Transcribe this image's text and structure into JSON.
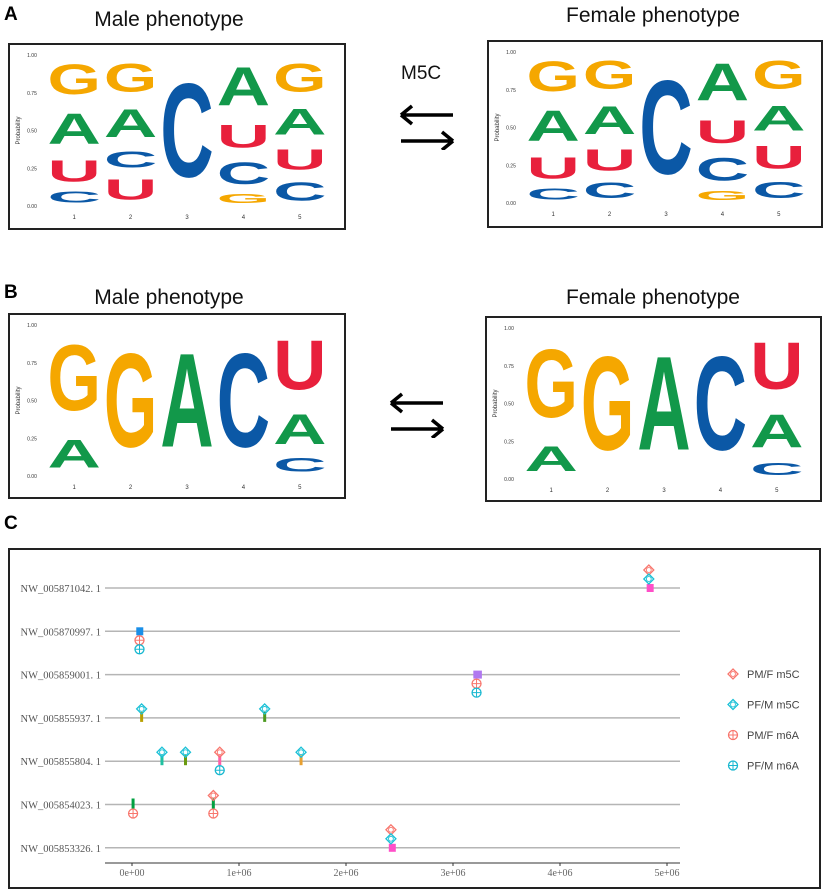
{
  "panels": {
    "a": {
      "label": "A",
      "modification": "M5C",
      "male_title": "Male phenotype",
      "female_title": "Female phenotype"
    },
    "b": {
      "label": "B",
      "male_title": "Male phenotype",
      "female_title": "Female phenotype"
    },
    "c": {
      "label": "C"
    }
  },
  "logo_colors": {
    "G": "#f5a700",
    "A": "#12984a",
    "U": "#e8203c",
    "C": "#0b58a6"
  },
  "chart_data": [
    {
      "type": "sequence-logo",
      "panel": "A",
      "title": "Male phenotype",
      "ylabel": "Probability",
      "yticks": [
        "0.00",
        "0.25",
        "0.50",
        "0.75",
        "1.00"
      ],
      "ylim": [
        0,
        1
      ],
      "positions": [
        "1",
        "2",
        "3",
        "4",
        "5"
      ],
      "stacks": [
        [
          {
            "base": "C",
            "p": 0.12
          },
          {
            "base": "U",
            "p": 0.23
          },
          {
            "base": "A",
            "p": 0.33
          },
          {
            "base": "G",
            "p": 0.32
          }
        ],
        [
          {
            "base": "U",
            "p": 0.22
          },
          {
            "base": "C",
            "p": 0.18
          },
          {
            "base": "A",
            "p": 0.3
          },
          {
            "base": "G",
            "p": 0.3
          }
        ],
        [
          {
            "base": "C",
            "p": 1.0
          }
        ],
        [
          {
            "base": "G",
            "p": 0.1
          },
          {
            "base": "C",
            "p": 0.24
          },
          {
            "base": "U",
            "p": 0.25
          },
          {
            "base": "A",
            "p": 0.41
          }
        ],
        [
          {
            "base": "C",
            "p": 0.2
          },
          {
            "base": "U",
            "p": 0.22
          },
          {
            "base": "A",
            "p": 0.28
          },
          {
            "base": "G",
            "p": 0.3
          }
        ]
      ]
    },
    {
      "type": "sequence-logo",
      "panel": "A",
      "title": "Female phenotype",
      "ylabel": "Probability",
      "yticks": [
        "0.00",
        "0.25",
        "0.50",
        "0.75",
        "1.00"
      ],
      "ylim": [
        0,
        1
      ],
      "positions": [
        "1",
        "2",
        "3",
        "4",
        "5"
      ],
      "stacks": [
        [
          {
            "base": "C",
            "p": 0.12
          },
          {
            "base": "U",
            "p": 0.23
          },
          {
            "base": "A",
            "p": 0.33
          },
          {
            "base": "G",
            "p": 0.32
          }
        ],
        [
          {
            "base": "C",
            "p": 0.17
          },
          {
            "base": "U",
            "p": 0.23
          },
          {
            "base": "A",
            "p": 0.3
          },
          {
            "base": "G",
            "p": 0.3
          }
        ],
        [
          {
            "base": "C",
            "p": 1.0
          }
        ],
        [
          {
            "base": "G",
            "p": 0.1
          },
          {
            "base": "C",
            "p": 0.25
          },
          {
            "base": "U",
            "p": 0.25
          },
          {
            "base": "A",
            "p": 0.4
          }
        ],
        [
          {
            "base": "C",
            "p": 0.18
          },
          {
            "base": "U",
            "p": 0.25
          },
          {
            "base": "A",
            "p": 0.27
          },
          {
            "base": "G",
            "p": 0.3
          }
        ]
      ]
    },
    {
      "type": "sequence-logo",
      "panel": "B",
      "title": "Male phenotype",
      "ylabel": "Probability",
      "yticks": [
        "0.00",
        "0.25",
        "0.50",
        "0.75",
        "1.00"
      ],
      "ylim": [
        0,
        1
      ],
      "positions": [
        "1",
        "2",
        "3",
        "4",
        "5"
      ],
      "stacks": [
        [
          {
            "base": "A",
            "p": 0.3
          },
          {
            "base": "G",
            "p": 0.7
          }
        ],
        [
          {
            "base": "G",
            "p": 1.0
          }
        ],
        [
          {
            "base": "A",
            "p": 1.0
          }
        ],
        [
          {
            "base": "C",
            "p": 1.0
          }
        ],
        [
          {
            "base": "C",
            "p": 0.15
          },
          {
            "base": "A",
            "p": 0.32
          },
          {
            "base": "U",
            "p": 0.53
          }
        ]
      ]
    },
    {
      "type": "sequence-logo",
      "panel": "B",
      "title": "Female phenotype",
      "ylabel": "Probability",
      "yticks": [
        "0.00",
        "0.25",
        "0.50",
        "0.75",
        "1.00"
      ],
      "ylim": [
        0,
        1
      ],
      "positions": [
        "1",
        "2",
        "3",
        "4",
        "5"
      ],
      "stacks": [
        [
          {
            "base": "A",
            "p": 0.27
          },
          {
            "base": "G",
            "p": 0.73
          }
        ],
        [
          {
            "base": "G",
            "p": 1.0
          }
        ],
        [
          {
            "base": "A",
            "p": 1.0
          }
        ],
        [
          {
            "base": "C",
            "p": 1.0
          }
        ],
        [
          {
            "base": "C",
            "p": 0.14
          },
          {
            "base": "A",
            "p": 0.36
          },
          {
            "base": "U",
            "p": 0.5
          }
        ]
      ]
    },
    {
      "type": "scatter",
      "panel": "C",
      "xlim": [
        0,
        5000000
      ],
      "xticks": [
        "0e+00",
        "1e+06",
        "2e+06",
        "3e+06",
        "4e+06",
        "5e+06"
      ],
      "xtick_values": [
        0,
        1000000,
        2000000,
        3000000,
        4000000,
        5000000
      ],
      "categories": [
        "NW_005871042. 1",
        "NW_005870997. 1",
        "NW_005859001. 1",
        "NW_005855937. 1",
        "NW_005855804. 1",
        "NW_005854023. 1",
        "NW_005853326. 1"
      ],
      "grid": "horizontal",
      "legend": {
        "position": "right",
        "entries": [
          {
            "name": "PM/F m5C",
            "marker": "diamond-cross",
            "color": "#f8766d"
          },
          {
            "name": "PF/M m5C",
            "marker": "diamond-cross",
            "color": "#19c0d6"
          },
          {
            "name": "PM/F m6A",
            "marker": "circle-cross",
            "color": "#f8766d"
          },
          {
            "name": "PF/M m6A",
            "marker": "circle-cross",
            "color": "#19b8d0"
          }
        ]
      },
      "series": [
        {
          "name": "PM/F m5C",
          "points": [
            {
              "category": "NW_005871042. 1",
              "x": 4830000
            },
            {
              "category": "NW_005855804. 1",
              "x": 820000
            },
            {
              "category": "NW_005854023. 1",
              "x": 760000
            },
            {
              "category": "NW_005853326. 1",
              "x": 2420000
            }
          ]
        },
        {
          "name": "PF/M m5C",
          "points": [
            {
              "category": "NW_005871042. 1",
              "x": 4830000
            },
            {
              "category": "NW_005855937. 1",
              "x": 90000
            },
            {
              "category": "NW_005855937. 1",
              "x": 1240000
            },
            {
              "category": "NW_005855804. 1",
              "x": 280000
            },
            {
              "category": "NW_005855804. 1",
              "x": 500000
            },
            {
              "category": "NW_005855804. 1",
              "x": 1580000
            },
            {
              "category": "NW_005853326. 1",
              "x": 2420000
            }
          ]
        },
        {
          "name": "PM/F m6A",
          "points": [
            {
              "category": "NW_005870997. 1",
              "x": 70000
            },
            {
              "category": "NW_005859001. 1",
              "x": 3220000
            },
            {
              "category": "NW_005854023. 1",
              "x": 10000
            },
            {
              "category": "NW_005854023. 1",
              "x": 760000
            }
          ]
        },
        {
          "name": "PF/M m6A",
          "points": [
            {
              "category": "NW_005870997. 1",
              "x": 70000
            },
            {
              "category": "NW_005859001. 1",
              "x": 3220000
            },
            {
              "category": "NW_005855804. 1",
              "x": 820000
            }
          ]
        }
      ],
      "features": [
        {
          "category": "NW_005871042. 1",
          "start": 4810000,
          "end": 4850000,
          "shape": "block",
          "color": "#ff4fc8"
        },
        {
          "category": "NW_005870997. 1",
          "start": 40000,
          "end": 100000,
          "shape": "block",
          "color": "#1a8fe8"
        },
        {
          "category": "NW_005859001. 1",
          "start": 3190000,
          "end": 3270000,
          "shape": "block",
          "color": "#b078f0"
        },
        {
          "category": "NW_005855937. 1",
          "start": 90000,
          "end": 90000,
          "shape": "tick",
          "color": "#b8a000"
        },
        {
          "category": "NW_005855937. 1",
          "start": 1240000,
          "end": 1240000,
          "shape": "tick",
          "color": "#4c9a20"
        },
        {
          "category": "NW_005855804. 1",
          "start": 280000,
          "end": 280000,
          "shape": "tick",
          "color": "#20c0a0"
        },
        {
          "category": "NW_005855804. 1",
          "start": 500000,
          "end": 500000,
          "shape": "tick",
          "color": "#6a9a10"
        },
        {
          "category": "NW_005855804. 1",
          "start": 820000,
          "end": 820000,
          "shape": "tick",
          "color": "#ff5fa8"
        },
        {
          "category": "NW_005855804. 1",
          "start": 1580000,
          "end": 1580000,
          "shape": "tick",
          "color": "#e8a030"
        },
        {
          "category": "NW_005854023. 1",
          "start": 10000,
          "end": 10000,
          "shape": "tick",
          "color": "#00a040"
        },
        {
          "category": "NW_005854023. 1",
          "start": 760000,
          "end": 760000,
          "shape": "tick",
          "color": "#00a040"
        },
        {
          "category": "NW_005853326. 1",
          "start": 2400000,
          "end": 2440000,
          "shape": "block",
          "color": "#ff4fc8"
        }
      ]
    }
  ]
}
